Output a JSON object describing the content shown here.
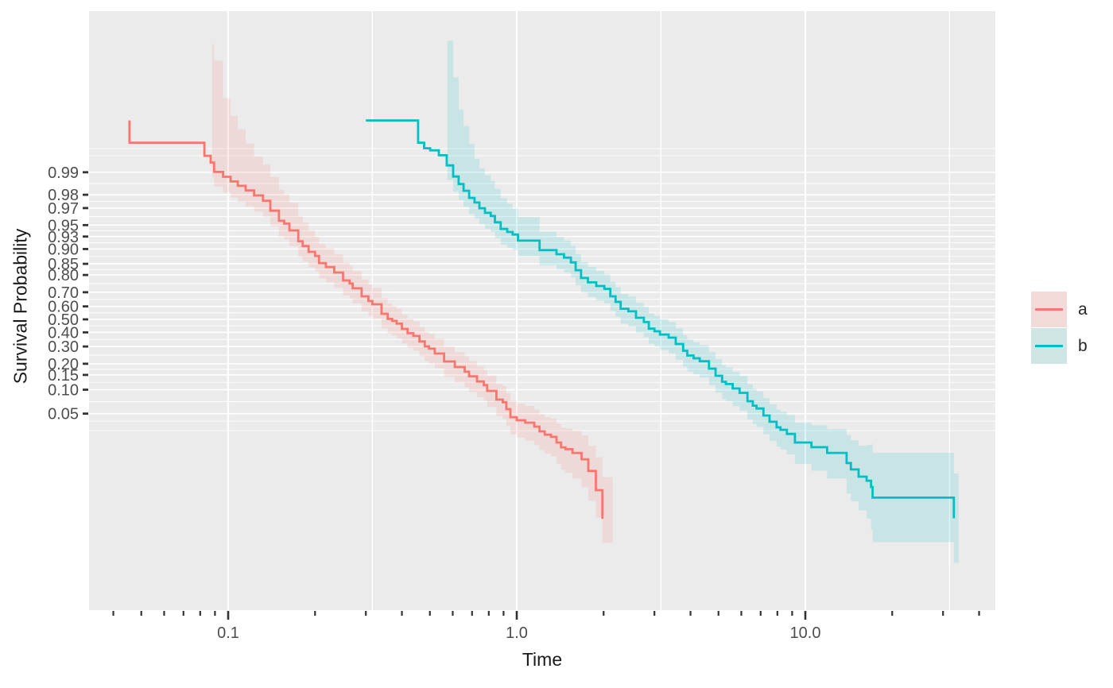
{
  "chart_data": {
    "type": "line",
    "subtype": "kaplan-meier-step-with-confidence-ribbon",
    "title": "",
    "x_axis": {
      "label": "Time",
      "scale": "log10",
      "major_ticks": [
        {
          "value": 0.1,
          "label": "0.1"
        },
        {
          "value": 1.0,
          "label": "1.0"
        },
        {
          "value": 10.0,
          "label": "10.0"
        }
      ],
      "minor_ticks": [
        0.04,
        0.05,
        0.06,
        0.07,
        0.08,
        0.09,
        0.2,
        0.3,
        0.4,
        0.5,
        0.6,
        0.7,
        0.8,
        0.9,
        2,
        3,
        4,
        5,
        6,
        7,
        8,
        9,
        20,
        30,
        40
      ],
      "minor_gridlines": [
        0.316,
        3.16,
        31.6
      ],
      "range": [
        0.033,
        45.5
      ]
    },
    "y_axis": {
      "label": "Survival Probability",
      "scale": "logit",
      "breaks": [
        {
          "value": 0.99,
          "label": "0.99"
        },
        {
          "value": 0.98,
          "label": "0.98"
        },
        {
          "value": 0.97,
          "label": "0.97"
        },
        {
          "value": 0.95,
          "label": "0.95"
        },
        {
          "value": 0.93,
          "label": "0.93"
        },
        {
          "value": 0.9,
          "label": "0.90"
        },
        {
          "value": 0.85,
          "label": "0.85"
        },
        {
          "value": 0.8,
          "label": "0.80"
        },
        {
          "value": 0.7,
          "label": "0.70"
        },
        {
          "value": 0.6,
          "label": "0.60"
        },
        {
          "value": 0.5,
          "label": "0.50"
        },
        {
          "value": 0.4,
          "label": "0.40"
        },
        {
          "value": 0.3,
          "label": "0.30"
        },
        {
          "value": 0.2,
          "label": "0.20"
        },
        {
          "value": 0.15,
          "label": "0.15"
        },
        {
          "value": 0.1,
          "label": "0.10"
        },
        {
          "value": 0.05,
          "label": "0.05"
        }
      ],
      "minor_break_extras": [
        0.9952,
        0.994,
        0.04,
        0.03
      ]
    },
    "series": [
      {
        "name": "a",
        "color": "#F8766D",
        "ribbon_swatch": "#F1DAD7",
        "steps": [
          [
            0.0455,
            0.998
          ],
          [
            0.0455,
            0.996
          ],
          [
            0.0827,
            0.994
          ],
          [
            0.087,
            0.9926
          ],
          [
            0.0894,
            0.9901
          ],
          [
            0.096,
            0.9885
          ],
          [
            0.102,
            0.9867
          ],
          [
            0.108,
            0.9848
          ],
          [
            0.115,
            0.9825
          ],
          [
            0.123,
            0.9796
          ],
          [
            0.132,
            0.976
          ],
          [
            0.14,
            0.9675
          ],
          [
            0.15,
            0.956
          ],
          [
            0.163,
            0.9415
          ],
          [
            0.175,
            0.92
          ],
          [
            0.19,
            0.8919
          ],
          [
            0.2,
            0.879
          ],
          [
            0.218,
            0.837
          ],
          [
            0.233,
            0.812
          ],
          [
            0.25,
            0.7714
          ],
          [
            0.27,
            0.725
          ],
          [
            0.29,
            0.6726
          ],
          [
            0.316,
            0.616
          ],
          [
            0.34,
            0.5434
          ],
          [
            0.37,
            0.488
          ],
          [
            0.4,
            0.426
          ],
          [
            0.438,
            0.373
          ],
          [
            0.48,
            0.3007
          ],
          [
            0.52,
            0.256
          ],
          [
            0.56,
            0.2117
          ],
          [
            0.61,
            0.184
          ],
          [
            0.66,
            0.163
          ],
          [
            0.728,
            0.126
          ],
          [
            0.79,
            0.0968
          ],
          [
            0.85,
            0.0755
          ],
          [
            0.92,
            0.0571
          ],
          [
            1.0,
            0.041
          ],
          [
            1.07,
            0.0382
          ],
          [
            1.15,
            0.0339
          ],
          [
            1.25,
            0.0266
          ],
          [
            1.373,
            0.0209
          ],
          [
            1.56,
            0.0152
          ],
          [
            1.77,
            0.0087
          ],
          [
            1.88,
            0.0048
          ],
          [
            1.98,
            0.00375
          ],
          [
            1.98,
            0.00197
          ]
        ],
        "ci_logit_offsets": [
          [
            0.088,
            3.7,
            0.45
          ],
          [
            0.097,
            2.3,
            0.5
          ],
          [
            0.12,
            1.25,
            0.5
          ],
          [
            0.2,
            0.6,
            0.48
          ],
          [
            0.4,
            0.45,
            0.45
          ],
          [
            0.8,
            0.48,
            0.5
          ],
          [
            1.3,
            0.55,
            0.6
          ],
          [
            1.8,
            0.8,
            0.95
          ],
          [
            1.98,
            1.3,
            0.75
          ],
          [
            2.15,
            1.3,
            0.75
          ]
        ],
        "ci_end_time": 2.15
      },
      {
        "name": "b",
        "color": "#00BFC4",
        "ribbon_swatch": "#CFE6E5",
        "steps": [
          [
            0.3,
            0.998
          ],
          [
            0.455,
            0.996
          ],
          [
            0.537,
            0.9941
          ],
          [
            0.572,
            0.9919
          ],
          [
            0.602,
            0.9886
          ],
          [
            0.629,
            0.9856
          ],
          [
            0.654,
            0.9823
          ],
          [
            0.684,
            0.978
          ],
          [
            0.714,
            0.9747
          ],
          [
            0.742,
            0.9699
          ],
          [
            0.776,
            0.9654
          ],
          [
            0.84,
            0.954
          ],
          [
            0.927,
            0.9387
          ],
          [
            1.01,
            0.9212
          ],
          [
            1.2,
            0.897
          ],
          [
            1.373,
            0.8844
          ],
          [
            1.6,
            0.823
          ],
          [
            1.886,
            0.7393
          ],
          [
            2.2,
            0.633
          ],
          [
            2.59,
            0.5124
          ],
          [
            3.0,
            0.408
          ],
          [
            3.557,
            0.3167
          ],
          [
            4.1,
            0.2287
          ],
          [
            4.885,
            0.1466
          ],
          [
            5.6,
            0.1035
          ],
          [
            6.3,
            0.0721
          ],
          [
            7.16,
            0.0473
          ],
          [
            8.2,
            0.0308
          ],
          [
            9.2,
            0.0209
          ],
          [
            10.5,
            0.0181
          ],
          [
            11.9,
            0.0152
          ],
          [
            13.9,
            0.0111
          ],
          [
            15.3,
            0.0073
          ],
          [
            16.9,
            0.0053
          ],
          [
            17.1,
            0.0038
          ],
          [
            32.7,
            0.0038
          ],
          [
            32.7,
            0.002
          ]
        ],
        "ci_logit_offsets": [
          [
            0.575,
            3.9,
            0.45
          ],
          [
            0.63,
            2.3,
            0.5
          ],
          [
            0.72,
            1.3,
            0.5
          ],
          [
            1.1,
            0.6,
            0.48
          ],
          [
            2.0,
            0.45,
            0.45
          ],
          [
            4.0,
            0.5,
            0.5
          ],
          [
            8.0,
            0.55,
            0.6
          ],
          [
            12.0,
            0.75,
            0.8
          ],
          [
            16.0,
            1.0,
            1.1
          ],
          [
            17.1,
            1.4,
            1.39
          ],
          [
            34.0,
            1.4,
            1.39
          ]
        ],
        "ci_end_time": 34.0
      }
    ]
  },
  "legend": {
    "entries": [
      {
        "label": "a",
        "line_color": "#F8766D",
        "swatch_color": "#F1DAD7"
      },
      {
        "label": "b",
        "line_color": "#00BFC4",
        "swatch_color": "#CFE6E5"
      }
    ]
  },
  "colors": {
    "panel_background": "#EBEBEB",
    "gridline": "#FFFFFF",
    "tick_mark": "#333333",
    "tick_label": "#4D4D4D",
    "axis_title": "#1A1A1A",
    "ribbon_opacity": "0.15"
  }
}
